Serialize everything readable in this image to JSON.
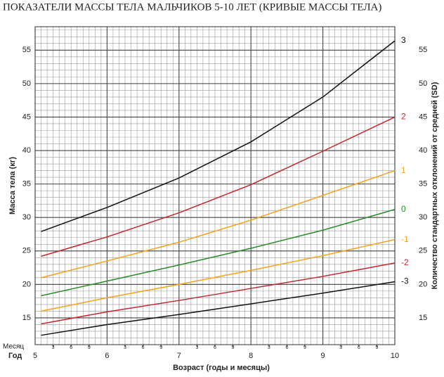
{
  "chart_data": {
    "type": "line",
    "title": "ПОКАЗАТЕЛИ МАССЫ ТЕЛА МАЛЬЧИКОВ 5-10 ЛЕТ (КРИВЫЕ МАССЫ ТЕЛА)",
    "ylabel": "Масса тела (кг)",
    "y2label": "Количество стандартных отклонений от средней (SD)",
    "xlabel": "Возраст (годы и месяцы)",
    "month_row_label": "Месяц",
    "year_row_label": "Год",
    "x": [
      5.083,
      6,
      7,
      8,
      9,
      10
    ],
    "series": [
      {
        "name": "3",
        "color": "#111111",
        "values": [
          27.9,
          31.5,
          35.9,
          41.3,
          48.0,
          56.4
        ]
      },
      {
        "name": "2",
        "color": "#c1272d",
        "values": [
          24.2,
          27.1,
          30.7,
          34.9,
          39.9,
          45.0
        ]
      },
      {
        "name": "1",
        "color": "#f5a11c",
        "values": [
          21.0,
          23.5,
          26.3,
          29.6,
          33.3,
          37.0
        ]
      },
      {
        "name": "0",
        "color": "#2a8a2a",
        "values": [
          18.3,
          20.5,
          22.9,
          25.4,
          28.1,
          31.2
        ]
      },
      {
        "name": "-1",
        "color": "#f5a11c",
        "values": [
          16.0,
          18.0,
          20.0,
          22.1,
          24.3,
          26.7
        ]
      },
      {
        "name": "-2",
        "color": "#c1272d",
        "values": [
          14.1,
          15.9,
          17.6,
          19.4,
          21.2,
          23.2
        ]
      },
      {
        "name": "-3",
        "color": "#111111",
        "values": [
          12.4,
          14.0,
          15.5,
          17.1,
          18.7,
          20.4
        ]
      }
    ],
    "xlim": [
      5,
      10
    ],
    "xticks": [
      5,
      6,
      7,
      8,
      9,
      10
    ],
    "month_ticks": [
      {
        "value": 5.25,
        "label": "3"
      },
      {
        "value": 5.5,
        "label": "6"
      },
      {
        "value": 5.75,
        "label": "9"
      },
      {
        "value": 6.25,
        "label": "3"
      },
      {
        "value": 6.5,
        "label": "6"
      },
      {
        "value": 6.75,
        "label": "9"
      },
      {
        "value": 7.25,
        "label": "3"
      },
      {
        "value": 7.5,
        "label": "6"
      },
      {
        "value": 7.75,
        "label": "9"
      },
      {
        "value": 8.25,
        "label": "3"
      },
      {
        "value": 8.5,
        "label": "6"
      },
      {
        "value": 8.75,
        "label": "9"
      },
      {
        "value": 9.25,
        "label": "3"
      },
      {
        "value": 9.5,
        "label": "6"
      },
      {
        "value": 9.75,
        "label": "9"
      }
    ],
    "ylim": [
      11,
      58.5
    ],
    "yticks": [
      15,
      20,
      25,
      30,
      35,
      40,
      45,
      50,
      55
    ],
    "grid": true
  }
}
